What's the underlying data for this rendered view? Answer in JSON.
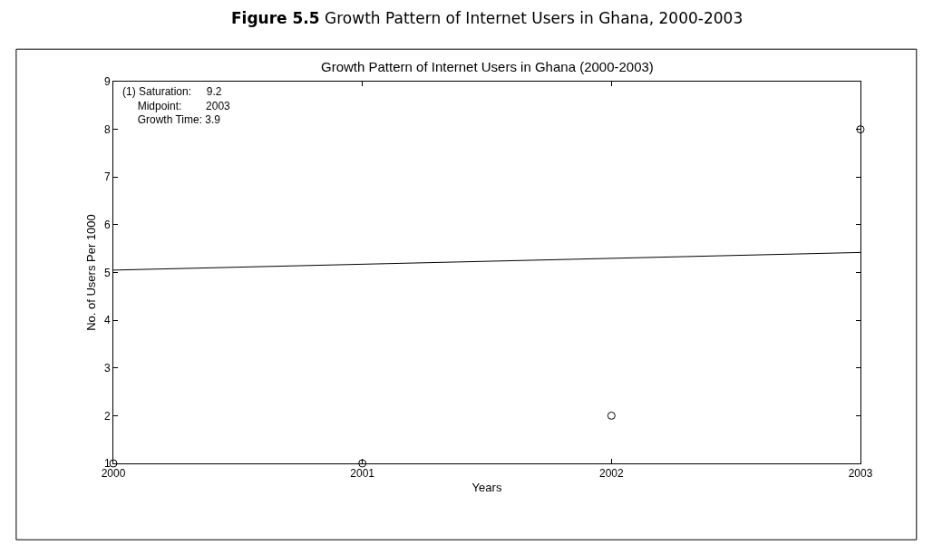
{
  "chart_data": {
    "type": "scatter",
    "title": "Figure 5.5 Growth Pattern of Internet Users in Ghana, 2000-2003",
    "subtitle": "Growth Pattern of Internet Users in Ghana (2000-2003)",
    "xlabel": "Years",
    "ylabel": "No. of Users Per 1000",
    "annotations": [
      "(1) Saturation:     9.2\n     Midpoint:        2003\n     Growth Time: 3.9"
    ],
    "series": [
      {
        "color": "#000000",
        "marker": "circle",
        "x": [
          2000,
          2001,
          2002,
          2003
        ],
        "values": [
          1,
          1,
          2,
          8
        ]
      },
      {
        "type": "line",
        "color": "#000000",
        "marker": "none",
        "line_style": "solid",
        "x": [
          2000,
          2003
        ],
        "values": [
          5.05,
          5.42
        ]
      }
    ],
    "xlim": [
      2000,
      2003
    ],
    "xticks": [
      2000,
      2001,
      2002,
      2003
    ],
    "ylim": [
      1,
      9
    ],
    "yticks": [
      1,
      2,
      3,
      4,
      5,
      6,
      7,
      8,
      9
    ]
  }
}
